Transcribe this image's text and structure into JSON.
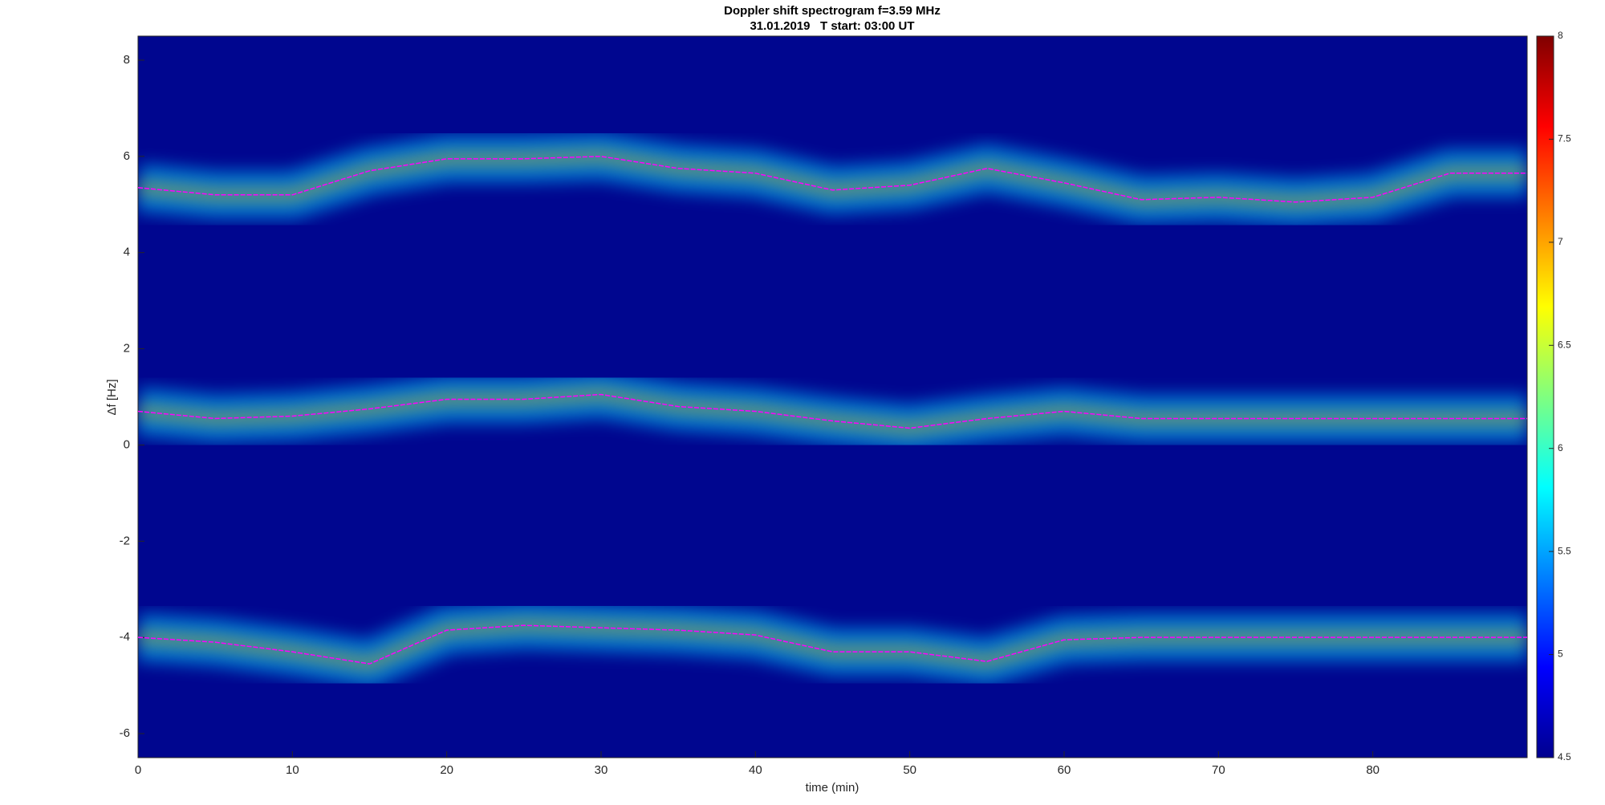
{
  "chart_data": {
    "type": "line",
    "title": "Doppler shift spectrogram f=3.59 MHz",
    "subtitle": "31.01.2019   T start: 03:00 UT",
    "x_label": "time (min)",
    "y_label": "Δf [Hz]",
    "x": [
      0,
      5,
      10,
      15,
      20,
      25,
      30,
      35,
      40,
      45,
      50,
      55,
      60,
      65,
      70,
      75,
      80,
      85,
      90
    ],
    "series": [
      {
        "color": "#ff00ff",
        "values": [
          5.35,
          5.2,
          5.2,
          5.7,
          5.95,
          5.95,
          6.0,
          5.75,
          5.65,
          5.3,
          5.4,
          5.75,
          5.45,
          5.1,
          5.15,
          5.05,
          5.15,
          5.65,
          5.65
        ]
      },
      {
        "color": "#ff00ff",
        "values": [
          0.7,
          0.55,
          0.6,
          0.75,
          0.95,
          0.95,
          1.05,
          0.8,
          0.7,
          0.5,
          0.35,
          0.55,
          0.7,
          0.55,
          0.55,
          0.55,
          0.55,
          0.55,
          0.55
        ]
      },
      {
        "color": "#ff00ff",
        "values": [
          -4.0,
          -4.1,
          -4.3,
          -4.55,
          -3.85,
          -3.75,
          -3.8,
          -3.85,
          -3.95,
          -4.3,
          -4.3,
          -4.5,
          -4.05,
          -4.0,
          -4.0,
          -4.0,
          -4.0,
          -4.0,
          -4.0
        ]
      }
    ],
    "xlim": [
      0,
      90
    ],
    "xticks": [
      0,
      10,
      20,
      30,
      40,
      50,
      60,
      70,
      80
    ],
    "ylim": [
      -6.5,
      8.5
    ],
    "yticks": [
      -6,
      -4,
      -2,
      0,
      2,
      4,
      6,
      8
    ],
    "colorbar": {
      "ylim": [
        4.5,
        8
      ],
      "yticks": [
        4.5,
        5,
        5.5,
        6,
        6.5,
        7,
        7.5,
        8
      ]
    }
  }
}
